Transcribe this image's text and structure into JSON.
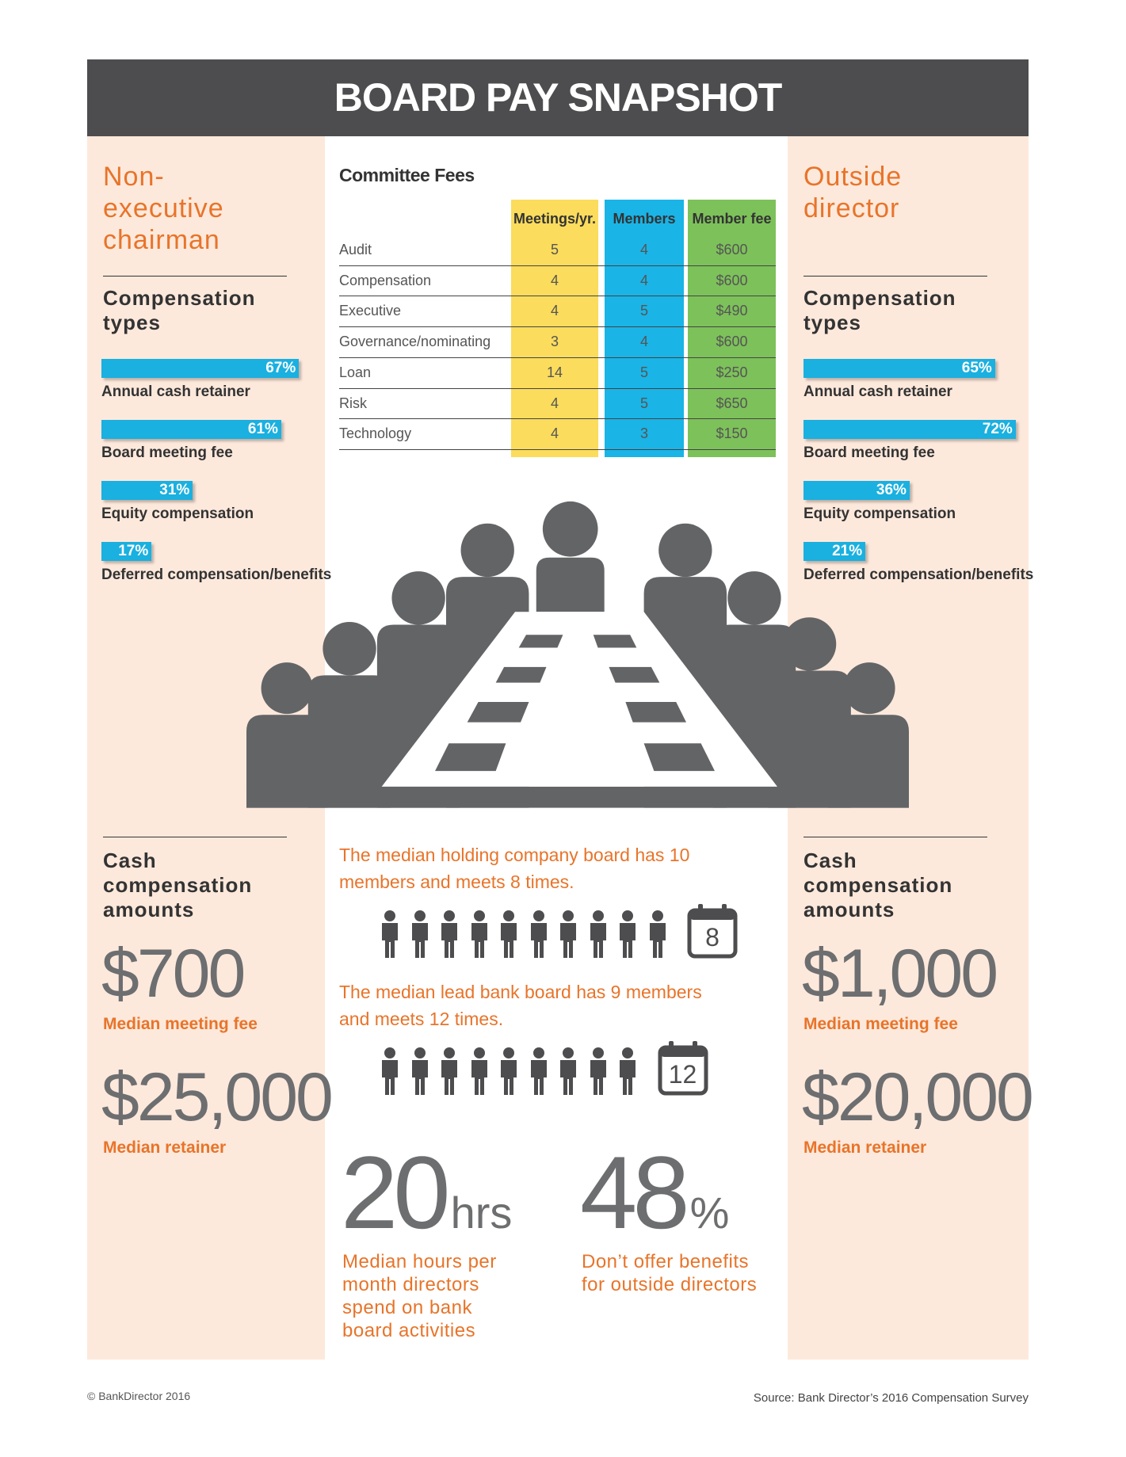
{
  "header": {
    "title": "BOARD PAY SNAPSHOT"
  },
  "left": {
    "heading": "Non-executive chairman",
    "types_heading": "Compensation types",
    "types": {
      "labels": [
        "Annual cash retainer",
        "Board meeting fee",
        "Equity compensation",
        "Deferred compensation/benefits"
      ],
      "values": [
        67,
        61,
        31,
        17
      ],
      "value_labels": [
        "67%",
        "61%",
        "31%",
        "17%"
      ]
    },
    "cash_heading": "Cash compensation amounts",
    "amounts": [
      {
        "value": "$700",
        "label": "Median meeting fee"
      },
      {
        "value": "$25,000",
        "label": "Median retainer"
      }
    ]
  },
  "right": {
    "heading": "Outside director",
    "types_heading": "Compensation types",
    "types": {
      "labels": [
        "Annual cash retainer",
        "Board meeting fee",
        "Equity compensation",
        "Deferred compensation/benefits"
      ],
      "values": [
        65,
        72,
        36,
        21
      ],
      "value_labels": [
        "65%",
        "72%",
        "36%",
        "21%"
      ]
    },
    "cash_heading": "Cash compensation amounts",
    "amounts": [
      {
        "value": "$1,000",
        "label": "Median meeting fee"
      },
      {
        "value": "$20,000",
        "label": "Median retainer"
      }
    ]
  },
  "table": {
    "title": "Committee Fees",
    "columns": [
      "Meetings/yr.",
      "Members",
      "Member fee"
    ],
    "rows": [
      [
        "Audit",
        5,
        4,
        "$600"
      ],
      [
        "Compensation",
        4,
        4,
        "$600"
      ],
      [
        "Executive",
        4,
        5,
        "$490"
      ],
      [
        "Governance/nominating",
        3,
        4,
        "$600"
      ],
      [
        "Loan",
        14,
        5,
        "$250"
      ],
      [
        "Risk",
        4,
        5,
        "$650"
      ],
      [
        "Technology",
        4,
        3,
        "$150"
      ]
    ]
  },
  "boards": [
    {
      "text": "The median holding company board has 10 members and meets 8 times.",
      "member_icons": 10,
      "meetings": "8"
    },
    {
      "text": "The median lead bank board has 9 members and meets 12 times.",
      "member_icons": 9,
      "meetings": "12"
    }
  ],
  "stats": [
    {
      "number": "20",
      "unit": "hrs",
      "text": "Median hours per month directors spend on bank board activities"
    },
    {
      "number": "48",
      "unit": "%",
      "text": "Don’t offer benefits for outside directors"
    }
  ],
  "footer": {
    "left": "© BankDirector 2016",
    "right": "Source: Bank Director’s 2016 Compensation Survey"
  }
}
